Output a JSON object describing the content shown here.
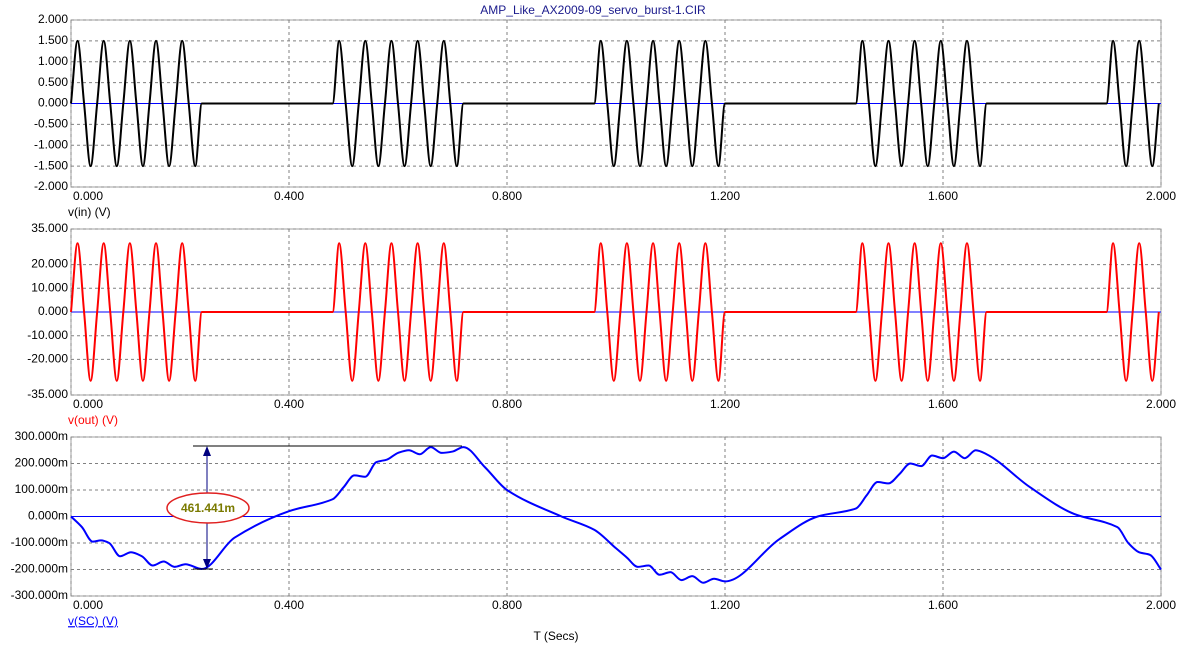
{
  "chart_data": [
    {
      "type": "line",
      "title": "AMP_Like_AX2009-09_servo_burst-1.CIR",
      "x": [
        0,
        0.012,
        0.024,
        0.036,
        0.048,
        0.06,
        0.072,
        0.084,
        0.096,
        0.108,
        0.12,
        0.132,
        0.144,
        0.156,
        0.168,
        0.18,
        0.192,
        0.204,
        0.216,
        0.228,
        0.24,
        0.48,
        0.492,
        0.504,
        0.516,
        0.528,
        0.54,
        0.552,
        0.564,
        0.576,
        0.588,
        0.6,
        0.612,
        0.624,
        0.636,
        0.648,
        0.66,
        0.672,
        0.684,
        0.696,
        0.708,
        0.72,
        0.96,
        0.972,
        0.984,
        0.996,
        1.008,
        1.02,
        1.032,
        1.044,
        1.056,
        1.068,
        1.08,
        1.092,
        1.104,
        1.116,
        1.128,
        1.14,
        1.152,
        1.164,
        1.176,
        1.188,
        1.2,
        1.44,
        1.452,
        1.464,
        1.476,
        1.488,
        1.5,
        1.512,
        1.524,
        1.536,
        1.548,
        1.56,
        1.572,
        1.584,
        1.596,
        1.608,
        1.62,
        1.632,
        1.644,
        1.656,
        1.668,
        1.68,
        1.9,
        1.912,
        1.924,
        1.936,
        1.948,
        1.96,
        1.972,
        1.984,
        1.996
      ],
      "series": [
        {
          "name": "v(in) (V)",
          "color": "#000000",
          "values": [
            0,
            1.5,
            0,
            -1.5,
            0,
            1.5,
            0,
            -1.5,
            0,
            1.5,
            0,
            -1.5,
            0,
            1.5,
            0,
            -1.5,
            0,
            1.5,
            0,
            -1.5,
            0,
            0,
            1.5,
            0,
            -1.5,
            0,
            1.5,
            0,
            -1.5,
            0,
            1.5,
            0,
            -1.5,
            0,
            1.5,
            0,
            -1.5,
            0,
            1.5,
            0,
            -1.5,
            0,
            0,
            1.5,
            0,
            -1.5,
            0,
            1.5,
            0,
            -1.5,
            0,
            1.5,
            0,
            -1.5,
            0,
            1.5,
            0,
            -1.5,
            0,
            1.5,
            0,
            -1.5,
            0,
            0,
            1.5,
            0,
            -1.5,
            0,
            1.5,
            0,
            -1.5,
            0,
            1.5,
            0,
            -1.5,
            0,
            1.5,
            0,
            -1.5,
            0,
            1.5,
            0,
            -1.5,
            0,
            0,
            1.5,
            0,
            -1.5,
            0,
            1.5,
            0,
            -1.5,
            0
          ]
        }
      ],
      "xlim": [
        0,
        2
      ],
      "xticks": [
        {
          "value": 0,
          "label": "0.000"
        },
        {
          "value": 0.4,
          "label": "0.400"
        },
        {
          "value": 0.8,
          "label": "0.800"
        },
        {
          "value": 1.2,
          "label": "1.200"
        },
        {
          "value": 1.6,
          "label": "1.600"
        },
        {
          "value": 2,
          "label": "2.000"
        }
      ],
      "ylim": [
        -2,
        2
      ],
      "yticks": [
        {
          "value": 2,
          "label": "2.000"
        },
        {
          "value": 1.5,
          "label": "1.500"
        },
        {
          "value": 1,
          "label": "1.000"
        },
        {
          "value": 0.5,
          "label": "0.500"
        },
        {
          "value": 0,
          "label": "0.000"
        },
        {
          "value": -0.5,
          "label": "-0.500"
        },
        {
          "value": -1,
          "label": "-1.000"
        },
        {
          "value": -1.5,
          "label": "-1.500"
        },
        {
          "value": -2,
          "label": "-2.000"
        }
      ],
      "grid": true
    },
    {
      "type": "line",
      "x": [
        0,
        0.012,
        0.024,
        0.036,
        0.048,
        0.06,
        0.072,
        0.084,
        0.096,
        0.108,
        0.12,
        0.132,
        0.144,
        0.156,
        0.168,
        0.18,
        0.192,
        0.204,
        0.216,
        0.228,
        0.24,
        0.48,
        0.492,
        0.504,
        0.516,
        0.528,
        0.54,
        0.552,
        0.564,
        0.576,
        0.588,
        0.6,
        0.612,
        0.624,
        0.636,
        0.648,
        0.66,
        0.672,
        0.684,
        0.696,
        0.708,
        0.72,
        0.96,
        0.972,
        0.984,
        0.996,
        1.008,
        1.02,
        1.032,
        1.044,
        1.056,
        1.068,
        1.08,
        1.092,
        1.104,
        1.116,
        1.128,
        1.14,
        1.152,
        1.164,
        1.176,
        1.188,
        1.2,
        1.44,
        1.452,
        1.464,
        1.476,
        1.488,
        1.5,
        1.512,
        1.524,
        1.536,
        1.548,
        1.56,
        1.572,
        1.584,
        1.596,
        1.608,
        1.62,
        1.632,
        1.644,
        1.656,
        1.668,
        1.68,
        1.9,
        1.912,
        1.924,
        1.936,
        1.948,
        1.96,
        1.972,
        1.984,
        1.996
      ],
      "series": [
        {
          "name": "v(out) (V)",
          "color": "#ff0000",
          "values": [
            0,
            29,
            0,
            -29,
            0,
            29,
            0,
            -29,
            0,
            29,
            0,
            -29,
            0,
            29,
            0,
            -29,
            0,
            29,
            0,
            -29,
            0,
            0,
            29,
            0,
            -29,
            0,
            29,
            0,
            -29,
            0,
            29,
            0,
            -29,
            0,
            29,
            0,
            -29,
            0,
            29,
            0,
            -29,
            0,
            0,
            29,
            0,
            -29,
            0,
            29,
            0,
            -29,
            0,
            29,
            0,
            -29,
            0,
            29,
            0,
            -29,
            0,
            29,
            0,
            -29,
            0,
            0,
            29,
            0,
            -29,
            0,
            29,
            0,
            -29,
            0,
            29,
            0,
            -29,
            0,
            29,
            0,
            -29,
            0,
            29,
            0,
            -29,
            0,
            0,
            29,
            0,
            -29,
            0,
            29,
            0,
            -29,
            0
          ]
        }
      ],
      "xlim": [
        0,
        2
      ],
      "xticks": [
        {
          "value": 0,
          "label": "0.000"
        },
        {
          "value": 0.4,
          "label": "0.400"
        },
        {
          "value": 0.8,
          "label": "0.800"
        },
        {
          "value": 1.2,
          "label": "1.200"
        },
        {
          "value": 1.6,
          "label": "1.600"
        },
        {
          "value": 2,
          "label": "2.000"
        }
      ],
      "ylim": [
        -35,
        35
      ],
      "yticks": [
        {
          "value": 35,
          "label": "35.000"
        },
        {
          "value": 20,
          "label": "20.000"
        },
        {
          "value": 10,
          "label": "10.000"
        },
        {
          "value": 0,
          "label": "0.000"
        },
        {
          "value": -10,
          "label": "-10.000"
        },
        {
          "value": -20,
          "label": "-20.000"
        },
        {
          "value": -35,
          "label": "-35.000"
        }
      ],
      "grid": true
    },
    {
      "type": "line",
      "xlabel": "T (Secs)",
      "x": [
        0,
        0.02,
        0.04,
        0.055,
        0.07,
        0.09,
        0.11,
        0.13,
        0.15,
        0.17,
        0.19,
        0.21,
        0.24,
        0.3,
        0.4,
        0.48,
        0.5,
        0.52,
        0.54,
        0.56,
        0.58,
        0.6,
        0.62,
        0.64,
        0.66,
        0.68,
        0.7,
        0.72,
        0.76,
        0.8,
        0.9,
        0.96,
        1.0,
        1.02,
        1.04,
        1.06,
        1.08,
        1.1,
        1.12,
        1.14,
        1.16,
        1.18,
        1.2,
        1.3,
        1.37,
        1.44,
        1.46,
        1.48,
        1.5,
        1.52,
        1.54,
        1.56,
        1.58,
        1.6,
        1.62,
        1.64,
        1.66,
        1.68,
        1.76,
        1.84,
        1.92,
        1.94,
        1.96,
        1.98,
        2.0
      ],
      "series": [
        {
          "name": "v(SC) (V)",
          "color": "#0000ff",
          "values": [
            0,
            -40,
            -95,
            -90,
            -100,
            -150,
            -135,
            -150,
            -185,
            -170,
            -190,
            -180,
            -198,
            -80,
            20,
            65,
            110,
            155,
            150,
            205,
            215,
            240,
            250,
            235,
            262,
            240,
            245,
            262,
            185,
            100,
            0,
            -50,
            -120,
            -155,
            -190,
            -185,
            -220,
            -210,
            -240,
            -225,
            -250,
            -235,
            -245,
            -85,
            0,
            30,
            80,
            130,
            125,
            160,
            200,
            190,
            230,
            220,
            245,
            220,
            250,
            235,
            110,
            10,
            -40,
            -100,
            -135,
            -145,
            -200
          ]
        }
      ],
      "annotations": [
        {
          "text": "461.441m"
        }
      ],
      "xlim": [
        0,
        2
      ],
      "xticks": [
        {
          "value": 0,
          "label": "0.000"
        },
        {
          "value": 0.4,
          "label": "0.400"
        },
        {
          "value": 0.8,
          "label": "0.800"
        },
        {
          "value": 1.2,
          "label": "1.200"
        },
        {
          "value": 1.6,
          "label": "1.600"
        },
        {
          "value": 2,
          "label": "2.000"
        }
      ],
      "ylim": [
        -300,
        300
      ],
      "yticks": [
        {
          "value": 300,
          "label": "300.000m"
        },
        {
          "value": 200,
          "label": "200.000m"
        },
        {
          "value": 100,
          "label": "100.000m"
        },
        {
          "value": 0,
          "label": "0.000m"
        },
        {
          "value": -100,
          "label": "-100.000m"
        },
        {
          "value": -200,
          "label": "-200.000m"
        },
        {
          "value": -300,
          "label": "-300.000m"
        }
      ],
      "grid": true
    }
  ]
}
